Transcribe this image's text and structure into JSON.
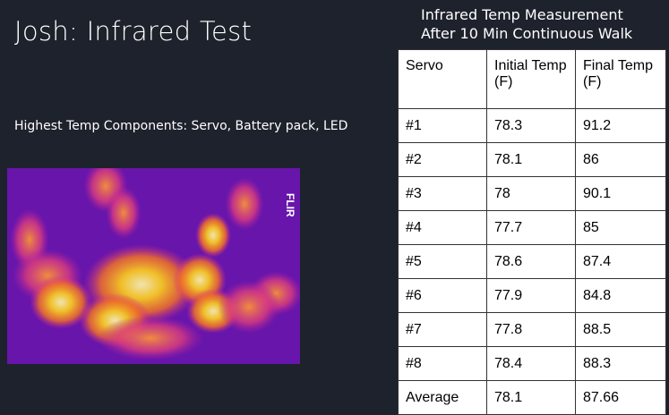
{
  "title": "Josh: Infrared Test",
  "subtitle": "Highest Temp Components: Servo, Battery pack, LED",
  "caption": [
    "Infrared Temp Measurement",
    "After 10 Min Continuous Walk"
  ],
  "image": {
    "logo": "FLIR"
  },
  "table": {
    "header": [
      "Servo",
      "Initial Temp  (F)",
      "Final Temp  (F)"
    ],
    "rows": [
      [
        "#1",
        78.3,
        91.2
      ],
      [
        "#2",
        78.1,
        86
      ],
      [
        "#3",
        78,
        90.1
      ],
      [
        "#4",
        77.7,
        85
      ],
      [
        "#5",
        78.6,
        87.4
      ],
      [
        "#6",
        77.9,
        84.8
      ],
      [
        "#7",
        77.8,
        88.5
      ],
      [
        "#8",
        78.4,
        88.3
      ],
      [
        "Average",
        78.1,
        87.66
      ]
    ]
  }
}
